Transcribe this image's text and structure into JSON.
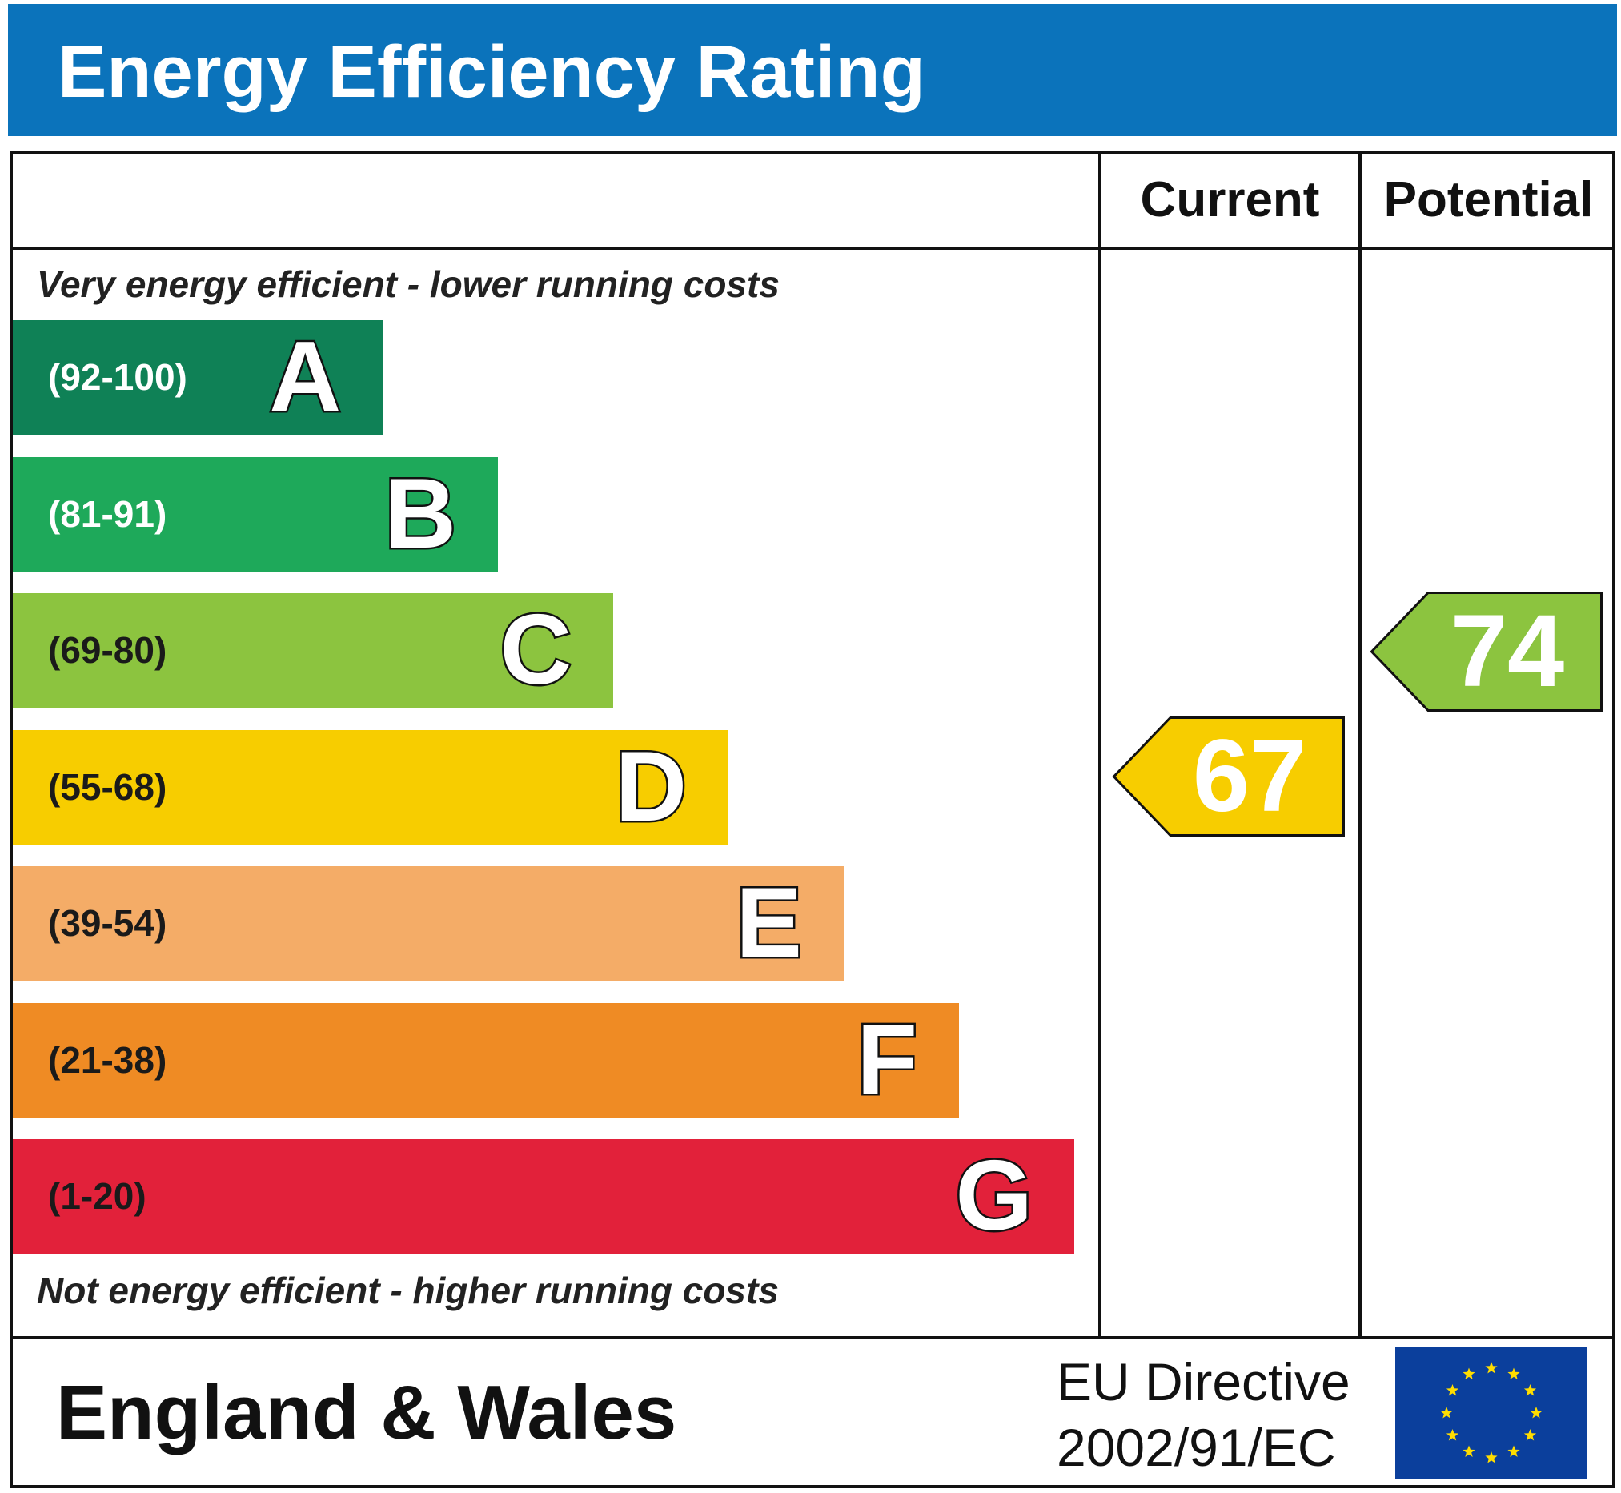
{
  "title": "Energy Efficiency Rating",
  "columns": {
    "current_label": "Current",
    "potential_label": "Potential"
  },
  "top_caption": "Very energy efficient - lower running costs",
  "bottom_caption": "Not energy efficient - higher running costs",
  "footer": {
    "country": "England & Wales",
    "directive_line1": "EU Directive",
    "directive_line2": "2002/91/EC"
  },
  "chart_data": {
    "type": "bar",
    "categories": [
      "A",
      "B",
      "C",
      "D",
      "E",
      "F",
      "G"
    ],
    "ranges": [
      "(92-100)",
      "(81-91)",
      "(69-80)",
      "(55-68)",
      "(39-54)",
      "(21-38)",
      "(1-20)"
    ],
    "colors": [
      "#0f8156",
      "#1ea95a",
      "#8cc43f",
      "#f7cd00",
      "#f4ac67",
      "#ef8b24",
      "#e2213a"
    ],
    "range_text_colors": [
      "#ffffff",
      "#ffffff",
      "#1a1a1a",
      "#1a1a1a",
      "#1a1a1a",
      "#1a1a1a",
      "#1a1a1a"
    ],
    "current": {
      "value": 67,
      "band": "D",
      "color": "#f7cd00"
    },
    "potential": {
      "value": 74,
      "band": "C",
      "color": "#8cc43f"
    }
  }
}
